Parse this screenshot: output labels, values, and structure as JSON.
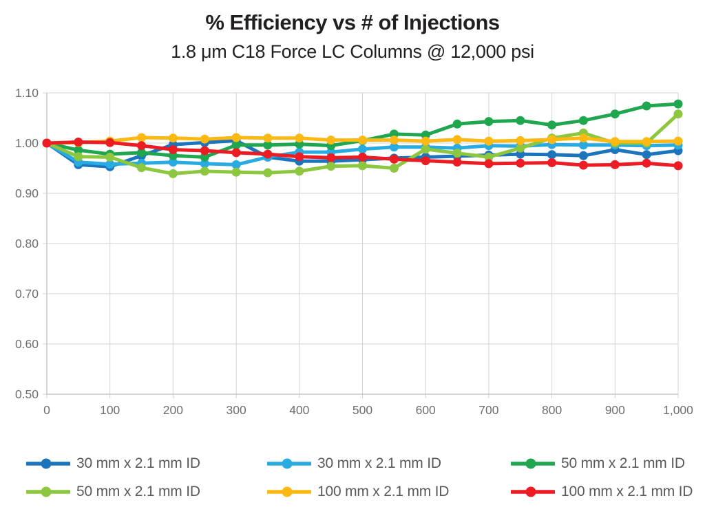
{
  "header": {
    "title": "% Efficiency vs # of Injections",
    "subtitle": "1.8 μm C18 Force LC Columns @ 12,000 psi"
  },
  "chart_data": {
    "type": "line",
    "title": "% Efficiency vs # of Injections",
    "subtitle": "1.8 μm C18 Force LC Columns @ 12,000 psi",
    "xlabel": "",
    "ylabel": "",
    "xlim": [
      0,
      1000
    ],
    "ylim": [
      0.5,
      1.1
    ],
    "grid": true,
    "legend_position": "bottom",
    "x_ticks": [
      0,
      100,
      200,
      300,
      400,
      500,
      600,
      700,
      800,
      900,
      1000
    ],
    "x_tick_labels": [
      "0",
      "100",
      "200",
      "300",
      "400",
      "500",
      "600",
      "700",
      "800",
      "900",
      "1,000"
    ],
    "y_ticks": [
      1.1,
      1.0,
      0.9,
      0.8,
      0.7,
      0.6,
      0.5
    ],
    "y_tick_labels": [
      "1.10",
      "1.00",
      "0.90",
      "0.80",
      "0.70",
      "0.60",
      "0.50"
    ],
    "x": [
      0,
      50,
      100,
      150,
      200,
      250,
      300,
      350,
      400,
      450,
      500,
      550,
      600,
      650,
      700,
      750,
      800,
      850,
      900,
      950,
      1000
    ],
    "series": [
      {
        "name": "30 mm x 2.1 mm ID",
        "color": "#1C75BC",
        "values": [
          1.0,
          0.957,
          0.953,
          0.975,
          0.997,
          1.001,
          1.005,
          0.972,
          0.964,
          0.964,
          0.967,
          0.97,
          0.972,
          0.974,
          0.976,
          0.978,
          0.977,
          0.975,
          0.987,
          0.977,
          0.985
        ]
      },
      {
        "name": "30 mm x 2.1 mm ID",
        "color": "#29ABE2",
        "values": [
          1.0,
          0.962,
          0.958,
          0.96,
          0.962,
          0.959,
          0.957,
          0.972,
          0.982,
          0.982,
          0.988,
          0.992,
          0.992,
          0.99,
          0.995,
          0.994,
          0.997,
          0.996,
          0.996,
          0.995,
          0.996
        ]
      },
      {
        "name": "50 mm x 2.1 mm ID",
        "color": "#1FA64F",
        "values": [
          1.0,
          0.986,
          0.978,
          0.981,
          0.975,
          0.972,
          0.996,
          0.996,
          0.998,
          0.995,
          1.005,
          1.018,
          1.016,
          1.038,
          1.043,
          1.045,
          1.036,
          1.045,
          1.058,
          1.074,
          1.078
        ]
      },
      {
        "name": "50 mm x 2.1 mm ID",
        "color": "#8DC63F",
        "values": [
          1.0,
          0.973,
          0.972,
          0.951,
          0.939,
          0.944,
          0.942,
          0.941,
          0.944,
          0.954,
          0.955,
          0.95,
          0.988,
          0.98,
          0.972,
          0.99,
          1.01,
          1.02,
          1.0,
          1.0,
          1.058
        ]
      },
      {
        "name": "100 mm x 2.1 mm ID",
        "color": "#FDB913",
        "values": [
          1.0,
          1.001,
          1.004,
          1.011,
          1.01,
          1.008,
          1.011,
          1.01,
          1.01,
          1.006,
          1.006,
          1.006,
          1.004,
          1.007,
          1.004,
          1.005,
          1.007,
          1.01,
          1.003,
          1.003,
          1.004
        ]
      },
      {
        "name": "100 mm x 2.1 mm ID",
        "color": "#EC1C24",
        "values": [
          1.0,
          1.002,
          1.001,
          0.995,
          0.987,
          0.985,
          0.981,
          0.978,
          0.973,
          0.971,
          0.972,
          0.968,
          0.965,
          0.962,
          0.959,
          0.96,
          0.961,
          0.956,
          0.957,
          0.96,
          0.955
        ]
      }
    ]
  },
  "style": {
    "grid_color": "#D1D3D4",
    "axis_color": "#BCBEC0",
    "tick_label_color": "#6D6E71",
    "legend_text_color": "#58595B",
    "title_color": "#231F20"
  }
}
